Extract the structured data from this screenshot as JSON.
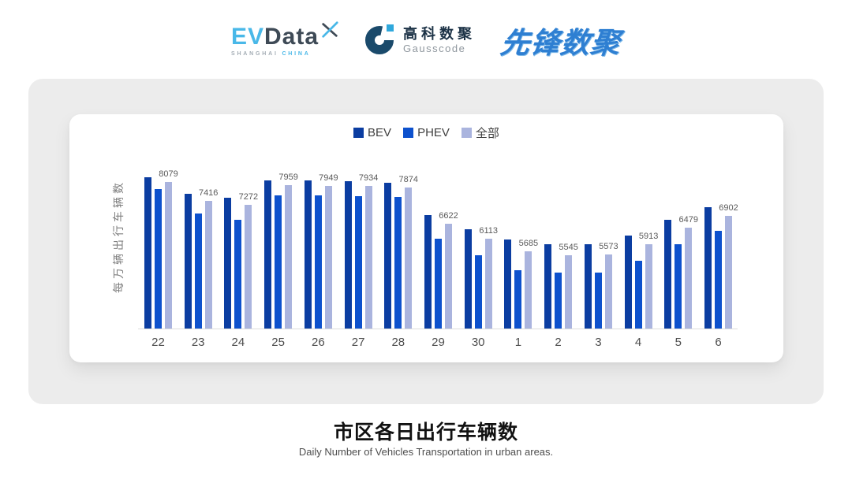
{
  "header": {
    "evdata": {
      "ev": "EV",
      "data": "Data",
      "sub_shanghai": "SHANGHAI",
      "sub_china": "CHINA"
    },
    "gausscode": {
      "name_cn": "高科数聚",
      "name_en": "Gausscode"
    },
    "pioneer": {
      "name": "先锋数聚"
    },
    "colors": {
      "evdata_cyan": "#49b8e8",
      "evdata_dark": "#3e4a56",
      "gausscode_navy": "#1a4a6b",
      "gausscode_cyan": "#2fa8dc",
      "pioneer_blue": "#2e7fd2"
    }
  },
  "chart_data": {
    "type": "bar",
    "title": "市区各日出行车辆数",
    "subtitle": "Daily Number of Vehicles Transportation in urban areas.",
    "ylabel": "每万辆出行车辆数",
    "xlabel": "",
    "categories": [
      "22",
      "23",
      "24",
      "25",
      "26",
      "27",
      "28",
      "29",
      "30",
      "1",
      "2",
      "3",
      "4",
      "5",
      "6"
    ],
    "series": [
      {
        "key": "bev",
        "name": "BEV",
        "color": "#0b3da1",
        "labels_shown": false,
        "values": [
          8230,
          7670,
          7540,
          8130,
          8120,
          8100,
          8040,
          6930,
          6450,
          6070,
          5910,
          5930,
          6220,
          6770,
          7210
        ]
      },
      {
        "key": "phev",
        "name": "PHEV",
        "color": "#0d51cd",
        "labels_shown": false,
        "values": [
          7830,
          6970,
          6760,
          7620,
          7620,
          7580,
          7560,
          6100,
          5530,
          5030,
          4930,
          4940,
          5340,
          5910,
          6370
        ]
      },
      {
        "key": "all",
        "name": "全部",
        "color": "#aab4de",
        "labels_shown": true,
        "values": [
          8079,
          7416,
          7272,
          7959,
          7949,
          7934,
          7874,
          6622,
          6113,
          5685,
          5545,
          5573,
          5913,
          6479,
          6902
        ]
      }
    ],
    "ylim": [
      3000,
      9000
    ],
    "grid": false,
    "legend_position": "top"
  }
}
